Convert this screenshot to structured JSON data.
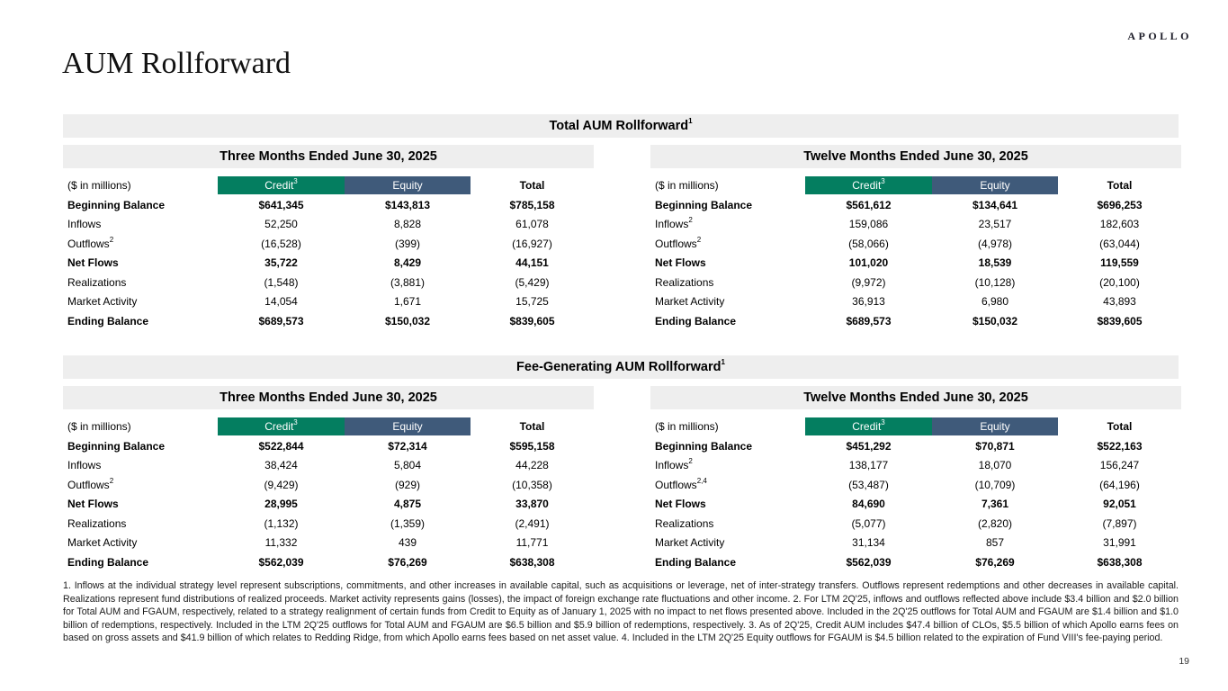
{
  "brand": "APOLLO",
  "page_title": "AUM Rollforward",
  "page_number": "19",
  "colors": {
    "credit_header_bg": "#047e60",
    "equity_header_bg": "#3f5a7a",
    "band_bg": "#eeeeee"
  },
  "sections": [
    {
      "title": "Total AUM Rollforward",
      "title_sup": "1",
      "tables": [
        {
          "period": "Three Months Ended June 30, 2025",
          "unit_label": "($ in millions)",
          "columns": [
            {
              "label": "Credit",
              "sup": "3"
            },
            {
              "label": "Equity",
              "sup": ""
            },
            {
              "label": "Total",
              "sup": ""
            }
          ],
          "rows": [
            {
              "label": "Beginning Balance",
              "sup": "",
              "bold": true,
              "values": [
                "$641,345",
                "$143,813",
                "$785,158"
              ]
            },
            {
              "label": "Inflows",
              "sup": "",
              "bold": false,
              "values": [
                "52,250",
                "8,828",
                "61,078"
              ]
            },
            {
              "label": "Outflows",
              "sup": "2",
              "bold": false,
              "values": [
                "(16,528)",
                "(399)",
                "(16,927)"
              ]
            },
            {
              "label": "Net Flows",
              "sup": "",
              "bold": true,
              "values": [
                "35,722",
                "8,429",
                "44,151"
              ]
            },
            {
              "label": "Realizations",
              "sup": "",
              "bold": false,
              "values": [
                "(1,548)",
                "(3,881)",
                "(5,429)"
              ]
            },
            {
              "label": "Market Activity",
              "sup": "",
              "bold": false,
              "values": [
                "14,054",
                "1,671",
                "15,725"
              ]
            },
            {
              "label": "Ending Balance",
              "sup": "",
              "bold": true,
              "values": [
                "$689,573",
                "$150,032",
                "$839,605"
              ]
            }
          ]
        },
        {
          "period": "Twelve Months Ended June 30, 2025",
          "unit_label": "($ in millions)",
          "columns": [
            {
              "label": "Credit",
              "sup": "3"
            },
            {
              "label": "Equity",
              "sup": ""
            },
            {
              "label": "Total",
              "sup": ""
            }
          ],
          "rows": [
            {
              "label": "Beginning Balance",
              "sup": "",
              "bold": true,
              "values": [
                "$561,612",
                "$134,641",
                "$696,253"
              ]
            },
            {
              "label": "Inflows",
              "sup": "2",
              "bold": false,
              "values": [
                "159,086",
                "23,517",
                "182,603"
              ]
            },
            {
              "label": "Outflows",
              "sup": "2",
              "bold": false,
              "values": [
                "(58,066)",
                "(4,978)",
                "(63,044)"
              ]
            },
            {
              "label": "Net Flows",
              "sup": "",
              "bold": true,
              "values": [
                "101,020",
                "18,539",
                "119,559"
              ]
            },
            {
              "label": "Realizations",
              "sup": "",
              "bold": false,
              "values": [
                "(9,972)",
                "(10,128)",
                "(20,100)"
              ]
            },
            {
              "label": "Market Activity",
              "sup": "",
              "bold": false,
              "values": [
                "36,913",
                "6,980",
                "43,893"
              ]
            },
            {
              "label": "Ending Balance",
              "sup": "",
              "bold": true,
              "values": [
                "$689,573",
                "$150,032",
                "$839,605"
              ]
            }
          ]
        }
      ]
    },
    {
      "title": "Fee-Generating AUM Rollforward",
      "title_sup": "1",
      "tables": [
        {
          "period": "Three Months Ended June 30, 2025",
          "unit_label": "($ in millions)",
          "columns": [
            {
              "label": "Credit",
              "sup": "3"
            },
            {
              "label": "Equity",
              "sup": ""
            },
            {
              "label": "Total",
              "sup": ""
            }
          ],
          "rows": [
            {
              "label": "Beginning Balance",
              "sup": "",
              "bold": true,
              "values": [
                "$522,844",
                "$72,314",
                "$595,158"
              ]
            },
            {
              "label": "Inflows",
              "sup": "",
              "bold": false,
              "values": [
                "38,424",
                "5,804",
                "44,228"
              ]
            },
            {
              "label": "Outflows",
              "sup": "2",
              "bold": false,
              "values": [
                "(9,429)",
                "(929)",
                "(10,358)"
              ]
            },
            {
              "label": "Net Flows",
              "sup": "",
              "bold": true,
              "values": [
                "28,995",
                "4,875",
                "33,870"
              ]
            },
            {
              "label": "Realizations",
              "sup": "",
              "bold": false,
              "values": [
                "(1,132)",
                "(1,359)",
                "(2,491)"
              ]
            },
            {
              "label": "Market Activity",
              "sup": "",
              "bold": false,
              "values": [
                "11,332",
                "439",
                "11,771"
              ]
            },
            {
              "label": "Ending Balance",
              "sup": "",
              "bold": true,
              "values": [
                "$562,039",
                "$76,269",
                "$638,308"
              ]
            }
          ]
        },
        {
          "period": "Twelve Months Ended June 30, 2025",
          "unit_label": "($ in millions)",
          "columns": [
            {
              "label": "Credit",
              "sup": "3"
            },
            {
              "label": "Equity",
              "sup": ""
            },
            {
              "label": "Total",
              "sup": ""
            }
          ],
          "rows": [
            {
              "label": "Beginning Balance",
              "sup": "",
              "bold": true,
              "values": [
                "$451,292",
                "$70,871",
                "$522,163"
              ]
            },
            {
              "label": "Inflows",
              "sup": "2",
              "bold": false,
              "values": [
                "138,177",
                "18,070",
                "156,247"
              ]
            },
            {
              "label": "Outflows",
              "sup": "2,4",
              "bold": false,
              "values": [
                "(53,487)",
                "(10,709)",
                "(64,196)"
              ]
            },
            {
              "label": "Net Flows",
              "sup": "",
              "bold": true,
              "values": [
                "84,690",
                "7,361",
                "92,051"
              ]
            },
            {
              "label": "Realizations",
              "sup": "",
              "bold": false,
              "values": [
                "(5,077)",
                "(2,820)",
                "(7,897)"
              ]
            },
            {
              "label": "Market Activity",
              "sup": "",
              "bold": false,
              "values": [
                "31,134",
                "857",
                "31,991"
              ]
            },
            {
              "label": "Ending Balance",
              "sup": "",
              "bold": true,
              "values": [
                "$562,039",
                "$76,269",
                "$638,308"
              ]
            }
          ]
        }
      ]
    }
  ],
  "footnotes": "1. Inflows at the individual strategy level represent subscriptions, commitments, and other increases in available capital, such as acquisitions or leverage, net of inter-strategy transfers. Outflows represent redemptions and other decreases in available capital. Realizations represent fund distributions of realized proceeds. Market activity represents gains (losses), the impact of foreign exchange rate fluctuations and other income. 2. For LTM 2Q'25, inflows and outflows reflected above include $3.4 billion and $2.0 billion for Total AUM and FGAUM, respectively, related to a strategy realignment of certain funds from Credit to Equity as of January 1, 2025 with no impact to net flows presented above. Included in the 2Q'25 outflows for Total AUM and FGAUM are $1.4 billion and $1.0 billion of redemptions, respectively. Included in the LTM 2Q'25 outflows for Total AUM and FGAUM are $6.5 billion and $5.9 billion of redemptions, respectively. 3. As of 2Q'25, Credit AUM includes $47.4 billion of CLOs, $5.5 billion of which Apollo earns fees on based on gross assets and $41.9 billion of which relates to Redding Ridge, from which Apollo earns fees based on net asset value. 4. Included in the LTM 2Q'25 Equity outflows for FGAUM is $4.5 billion related to the expiration of Fund VIII's fee-paying period."
}
